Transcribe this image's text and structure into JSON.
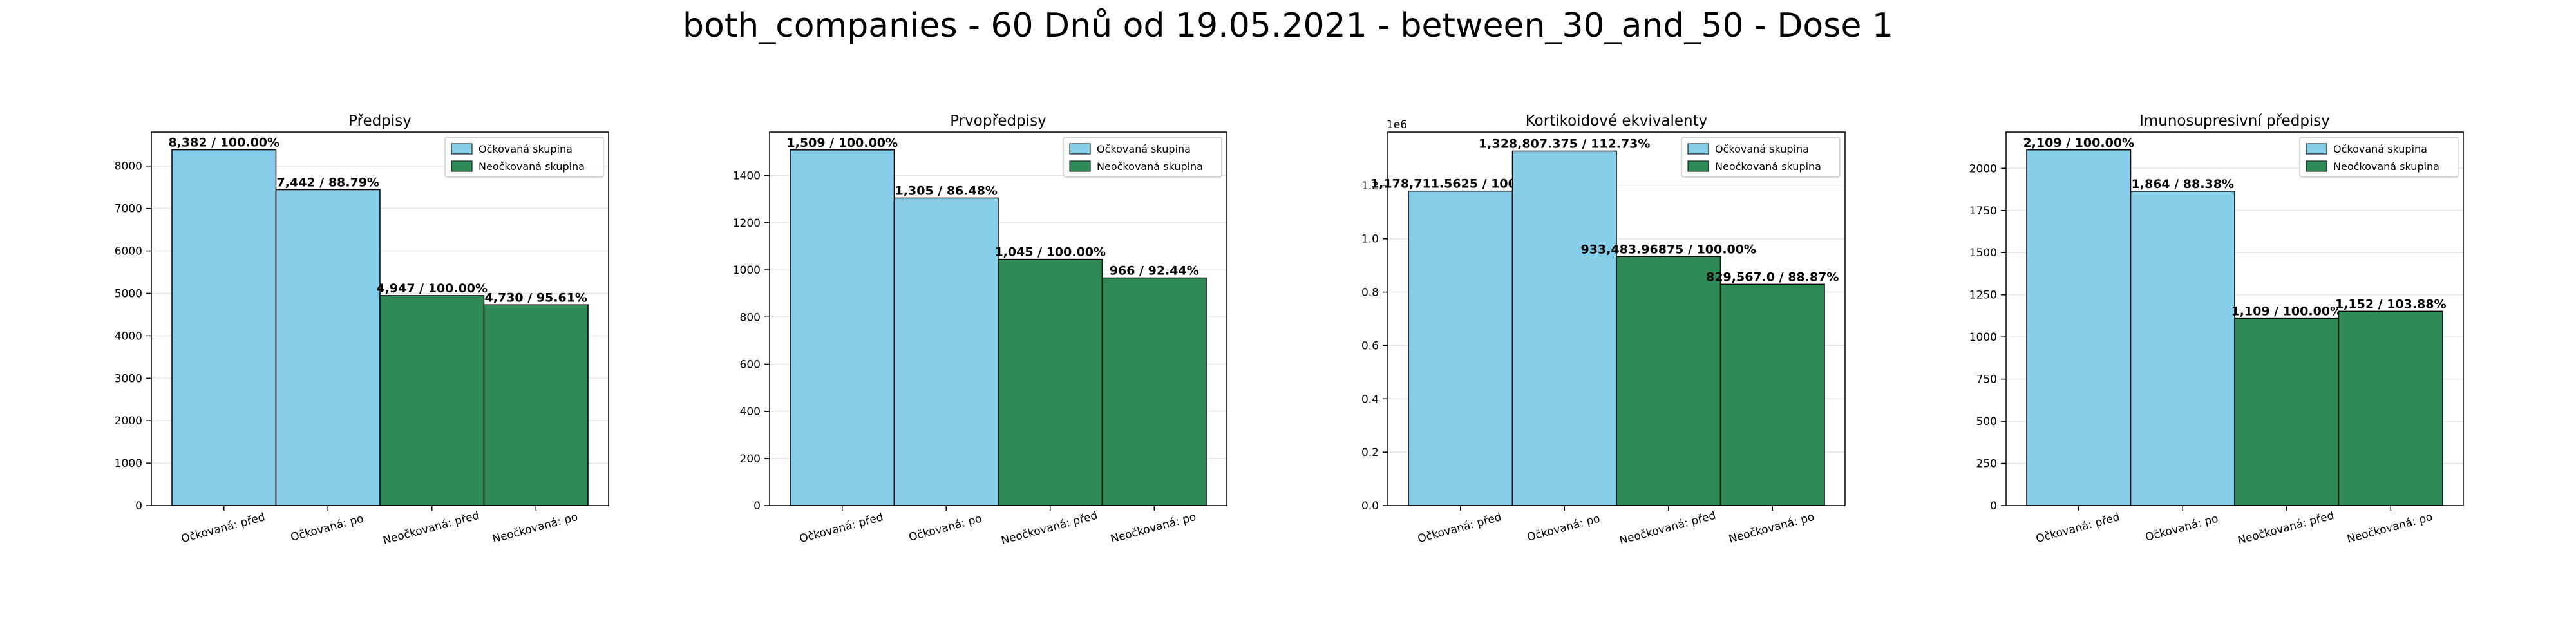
{
  "figure": {
    "title": "both_companies - 60 Dnů od 19.05.2021 - between_30_and_50 - Dose 1"
  },
  "colors": {
    "vaccinated": "#87ceeb",
    "unvaccinated": "#2e8b57",
    "edge": "#000000",
    "grid": "#e6e6e6"
  },
  "legend_labels": [
    "Očkovaná skupina",
    "Neočkovaná skupina"
  ],
  "chart_data": [
    {
      "type": "bar",
      "title": "Předpisy",
      "categories": [
        "Očkovaná: před",
        "Očkovaná: po",
        "Neočkovaná: před",
        "Neočkovaná: po"
      ],
      "values": [
        8382,
        7442,
        4947,
        4730
      ],
      "bar_labels": [
        "8,382 / 100.00%",
        "7,442 / 88.79%",
        "4,947 / 100.00%",
        "4,730 / 95.61%"
      ],
      "groups": [
        "vaccinated",
        "vaccinated",
        "unvaccinated",
        "unvaccinated"
      ],
      "ylim": [
        0,
        8800
      ],
      "yticks": [
        0,
        1000,
        2000,
        3000,
        4000,
        5000,
        6000,
        7000,
        8000
      ],
      "ytick_labels": [
        "0",
        "1000",
        "2000",
        "3000",
        "4000",
        "5000",
        "6000",
        "7000",
        "8000"
      ],
      "offset_label": "",
      "grid": true,
      "legend_position": "top-right"
    },
    {
      "type": "bar",
      "title": "Prvopředpisy",
      "categories": [
        "Očkovaná: před",
        "Očkovaná: po",
        "Neočkovaná: před",
        "Neočkovaná: po"
      ],
      "values": [
        1509,
        1305,
        1045,
        966
      ],
      "bar_labels": [
        "1,509 / 100.00%",
        "1,305 / 86.48%",
        "1,045 / 100.00%",
        "966 / 92.44%"
      ],
      "groups": [
        "vaccinated",
        "vaccinated",
        "unvaccinated",
        "unvaccinated"
      ],
      "ylim": [
        0,
        1585
      ],
      "yticks": [
        0,
        200,
        400,
        600,
        800,
        1000,
        1200,
        1400
      ],
      "ytick_labels": [
        "0",
        "200",
        "400",
        "600",
        "800",
        "1000",
        "1200",
        "1400"
      ],
      "offset_label": "",
      "grid": true,
      "legend_position": "top-right"
    },
    {
      "type": "bar",
      "title": "Kortikoidové ekvivalenty",
      "categories": [
        "Očkovaná: před",
        "Očkovaná: po",
        "Neočkovaná: před",
        "Neočkovaná: po"
      ],
      "values": [
        1178711.5625,
        1328807.375,
        933483.96875,
        829567.0
      ],
      "bar_labels": [
        "1,178,711.5625 / 100.00%",
        "1,328,807.375 / 112.73%",
        "933,483.96875 / 100.00%",
        "829,567.0 / 88.87%"
      ],
      "groups": [
        "vaccinated",
        "vaccinated",
        "unvaccinated",
        "unvaccinated"
      ],
      "ylim": [
        0,
        1400000
      ],
      "yticks": [
        0,
        200000,
        400000,
        600000,
        800000,
        1000000,
        1200000
      ],
      "ytick_labels": [
        "0.0",
        "0.2",
        "0.4",
        "0.6",
        "0.8",
        "1.0",
        "1.2"
      ],
      "offset_label": "1e6",
      "grid": true,
      "legend_position": "top-right"
    },
    {
      "type": "bar",
      "title": "Imunosupresivní předpisy",
      "categories": [
        "Očkovaná: před",
        "Očkovaná: po",
        "Neočkovaná: před",
        "Neočkovaná: po"
      ],
      "values": [
        2109,
        1864,
        1109,
        1152
      ],
      "bar_labels": [
        "2,109 / 100.00%",
        "1,864 / 88.38%",
        "1,109 / 100.00%",
        "1,152 / 103.88%"
      ],
      "groups": [
        "vaccinated",
        "vaccinated",
        "unvaccinated",
        "unvaccinated"
      ],
      "ylim": [
        0,
        2215
      ],
      "yticks": [
        0,
        250,
        500,
        750,
        1000,
        1250,
        1500,
        1750,
        2000
      ],
      "ytick_labels": [
        "0",
        "250",
        "500",
        "750",
        "1000",
        "1250",
        "1500",
        "1750",
        "2000"
      ],
      "offset_label": "",
      "grid": true,
      "legend_position": "top-right"
    }
  ]
}
